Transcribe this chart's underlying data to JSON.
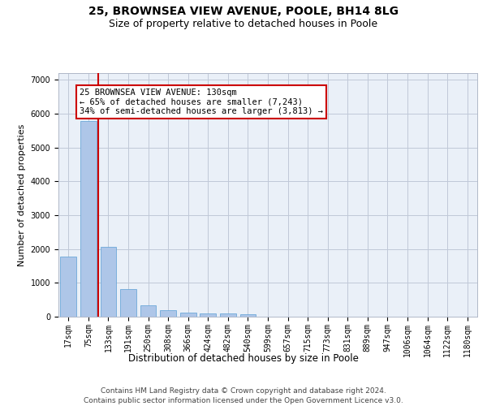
{
  "title1": "25, BROWNSEA VIEW AVENUE, POOLE, BH14 8LG",
  "title2": "Size of property relative to detached houses in Poole",
  "xlabel": "Distribution of detached houses by size in Poole",
  "ylabel": "Number of detached properties",
  "categories": [
    "17sqm",
    "75sqm",
    "133sqm",
    "191sqm",
    "250sqm",
    "308sqm",
    "366sqm",
    "424sqm",
    "482sqm",
    "540sqm",
    "599sqm",
    "657sqm",
    "715sqm",
    "773sqm",
    "831sqm",
    "889sqm",
    "947sqm",
    "1006sqm",
    "1064sqm",
    "1122sqm",
    "1180sqm"
  ],
  "values": [
    1780,
    5780,
    2060,
    820,
    340,
    185,
    110,
    105,
    95,
    75,
    0,
    0,
    0,
    0,
    0,
    0,
    0,
    0,
    0,
    0,
    0
  ],
  "bar_color": "#aec6e8",
  "bar_edge_color": "#5a9fd4",
  "vline_color": "#cc0000",
  "annotation_text": "25 BROWNSEA VIEW AVENUE: 130sqm\n← 65% of detached houses are smaller (7,243)\n34% of semi-detached houses are larger (3,813) →",
  "annotation_box_color": "#ffffff",
  "annotation_box_edge": "#cc0000",
  "ylim": [
    0,
    7200
  ],
  "yticks": [
    0,
    1000,
    2000,
    3000,
    4000,
    5000,
    6000,
    7000
  ],
  "background_color": "#eaf0f8",
  "footer1": "Contains HM Land Registry data © Crown copyright and database right 2024.",
  "footer2": "Contains public sector information licensed under the Open Government Licence v3.0.",
  "title1_fontsize": 10,
  "title2_fontsize": 9,
  "xlabel_fontsize": 8.5,
  "ylabel_fontsize": 8,
  "tick_fontsize": 7,
  "footer_fontsize": 6.5,
  "annotation_fontsize": 7.5
}
